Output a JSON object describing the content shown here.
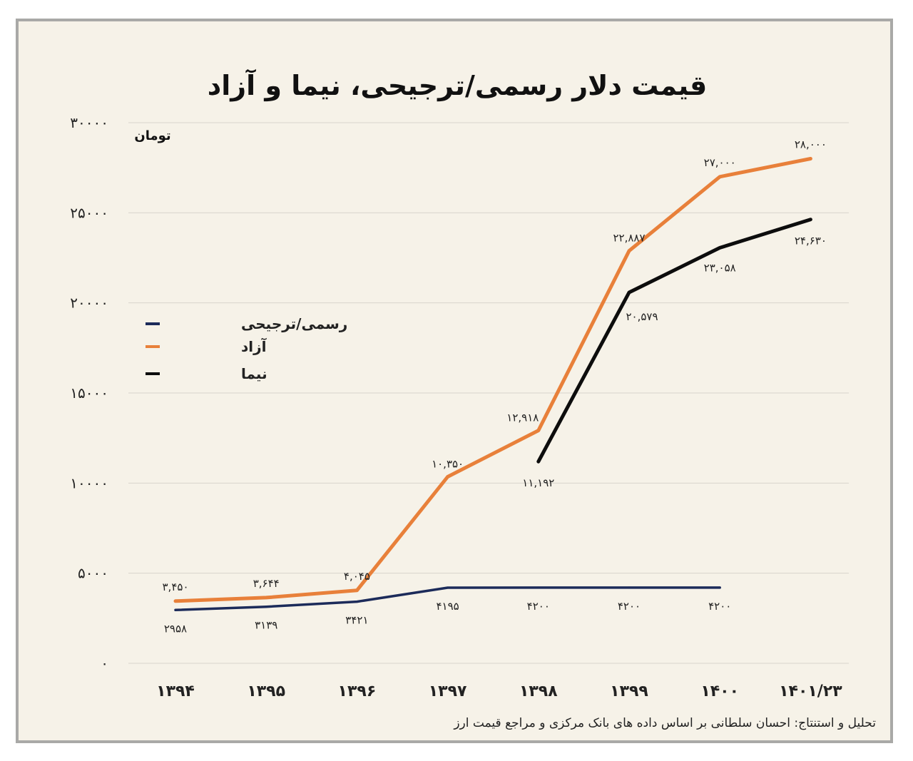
{
  "chart_data": {
    "type": "line",
    "title": "قیمت دلار رسمی/ترجیحی، نیما و آزاد",
    "ylabel": "تومان",
    "ylim": [
      0,
      30000
    ],
    "yticks": [
      "۰",
      "۵۰۰۰",
      "۱۰۰۰۰",
      "۱۵۰۰۰",
      "۲۰۰۰۰",
      "۲۵۰۰۰",
      "۳۰۰۰۰"
    ],
    "categories": [
      "۱۳۹۴",
      "۱۳۹۵",
      "۱۳۹۶",
      "۱۳۹۷",
      "۱۳۹۸",
      "۱۳۹۹",
      "۱۴۰۰",
      "۱۴۰۱/۲۳"
    ],
    "grid": true,
    "legend_position": "left",
    "series": [
      {
        "name": "رسمی/ترجیحی",
        "color": "#1c2b5a",
        "values": [
          2958,
          3139,
          3421,
          4195,
          4200,
          4200,
          4200,
          null
        ],
        "labels": [
          "۲۹۵۸",
          "۳۱۳۹",
          "۳۴۲۱",
          "۴۱۹۵",
          "۴۲۰۰",
          "۴۲۰۰",
          "۴۲۰۰",
          ""
        ]
      },
      {
        "name": "آزاد",
        "color": "#e8803a",
        "values": [
          3450,
          3644,
          4045,
          10350,
          12918,
          22887,
          27000,
          28000
        ],
        "labels": [
          "۳,۴۵۰",
          "۳,۶۴۴",
          "۴,۰۴۵",
          "۱۰,۳۵۰",
          "۱۲,۹۱۸",
          "۲۲,۸۸۷",
          "۲۷,۰۰۰",
          "۲۸,۰۰۰"
        ]
      },
      {
        "name": "نیما",
        "color": "#0d0d0d",
        "values": [
          null,
          null,
          null,
          null,
          11192,
          20579,
          23058,
          24630
        ],
        "labels": [
          "",
          "",
          "",
          "",
          "۱۱,۱۹۲",
          "۲۰,۵۷۹",
          "۲۳,۰۵۸",
          "۲۴,۶۳۰"
        ]
      }
    ]
  },
  "source_note": "تحلیل و استنتاج: احسان سلطانی بر اساس داده های بانک مرکزی و مراجع قیمت ارز"
}
